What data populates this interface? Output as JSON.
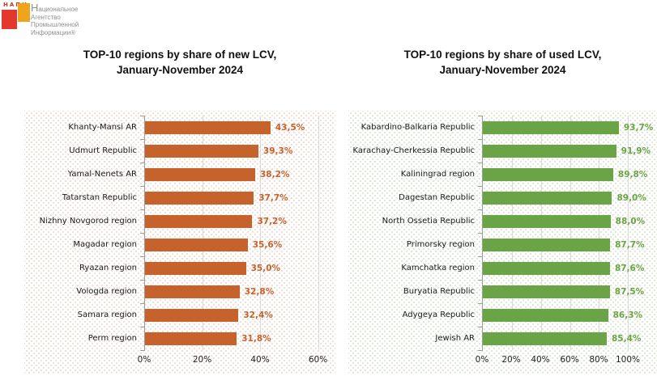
{
  "logo": {
    "brand": "НАПИ",
    "org_lines": [
      "Национальное",
      "Агентство",
      "Промышленной",
      "Информации®"
    ],
    "colors": {
      "red_square": "#e4372e",
      "orange_square": "#f0a31c",
      "brand_text": "#cc3929"
    }
  },
  "chart_data": [
    {
      "type": "bar",
      "orientation": "horizontal",
      "title": "TOP-10 regions by share of new LCV, January-November 2024",
      "title_line1": "TOP-10 regions by share of new LCV,",
      "title_line2": "January-November 2024",
      "categories": [
        "Khanty-Mansi AR",
        "Udmurt Republic",
        "Yamal-Nenets AR",
        "Tatarstan Republic",
        "Nizhny Novgorod region",
        "Magadar region",
        "Ryazan region",
        "Vologda region",
        "Samara region",
        "Perm region"
      ],
      "values": [
        43.5,
        39.3,
        38.2,
        37.7,
        37.2,
        35.6,
        35.0,
        32.8,
        32.4,
        31.8
      ],
      "value_labels": [
        "43,5%",
        "39,3%",
        "38,2%",
        "37,7%",
        "37,2%",
        "35,6%",
        "35,0%",
        "32,8%",
        "32,4%",
        "31,8%"
      ],
      "xlim": [
        0,
        66
      ],
      "x_ticks": [
        0,
        20,
        40,
        60
      ],
      "x_tick_labels": [
        "0%",
        "20%",
        "40%",
        "60%"
      ],
      "bar_color": "#c6622c",
      "grid": true,
      "legend": false
    },
    {
      "type": "bar",
      "orientation": "horizontal",
      "title": "TOP-10 regions by share of used LCV, January-November 2024",
      "title_line1": "TOP-10 regions by share of used LCV,",
      "title_line2": "January-November 2024",
      "categories": [
        "Kabardino-Balkaria Republic",
        "Karachay-Cherkessia Republic",
        "Kaliningrad region",
        "Dagestan Republic",
        "North Ossetia Republic",
        "Primorsky region",
        "Kamchatka region",
        "Buryatia Republic",
        "Adygeya Republic",
        "Jewish AR"
      ],
      "values": [
        93.7,
        91.9,
        89.8,
        89.0,
        88.0,
        87.7,
        87.6,
        87.5,
        86.3,
        85.4
      ],
      "value_labels": [
        "93,7%",
        "91,9%",
        "89,8%",
        "89,0%",
        "88,0%",
        "87,7%",
        "87,6%",
        "87,5%",
        "86,3%",
        "85,4%"
      ],
      "xlim": [
        0,
        120
      ],
      "x_ticks": [
        0,
        20,
        40,
        60,
        80,
        100
      ],
      "x_tick_labels": [
        "0%",
        "20%",
        "40%",
        "60%",
        "80%",
        "100%"
      ],
      "bar_color": "#6ba446",
      "grid": true,
      "legend": false
    }
  ]
}
